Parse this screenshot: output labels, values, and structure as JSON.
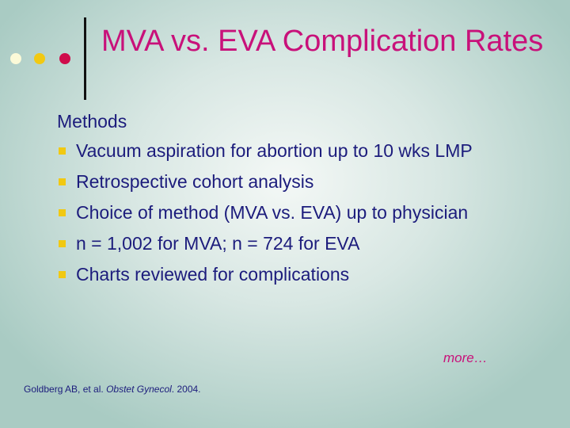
{
  "slide": {
    "title": "MVA vs. EVA Complication Rates",
    "heading": "Methods",
    "bullets": [
      "Vacuum aspiration for abortion up to 10 wks LMP",
      "Retrospective cohort analysis",
      "Choice of method (MVA vs. EVA) up to physician",
      "n = 1,002 for MVA; n = 724 for EVA",
      "Charts reviewed for complications"
    ],
    "more_link": "more…",
    "citation": {
      "authors": "Goldberg AB, et al.",
      "journal": "Obstet Gynecol",
      "year": ". 2004."
    }
  },
  "colors": {
    "title": "#c8117a",
    "body_text": "#1c1c7c",
    "bullet": "#f1c912",
    "dot_light": "#fbfad8",
    "dot_yellow": "#f1c912",
    "dot_red": "#cf0c4b"
  }
}
